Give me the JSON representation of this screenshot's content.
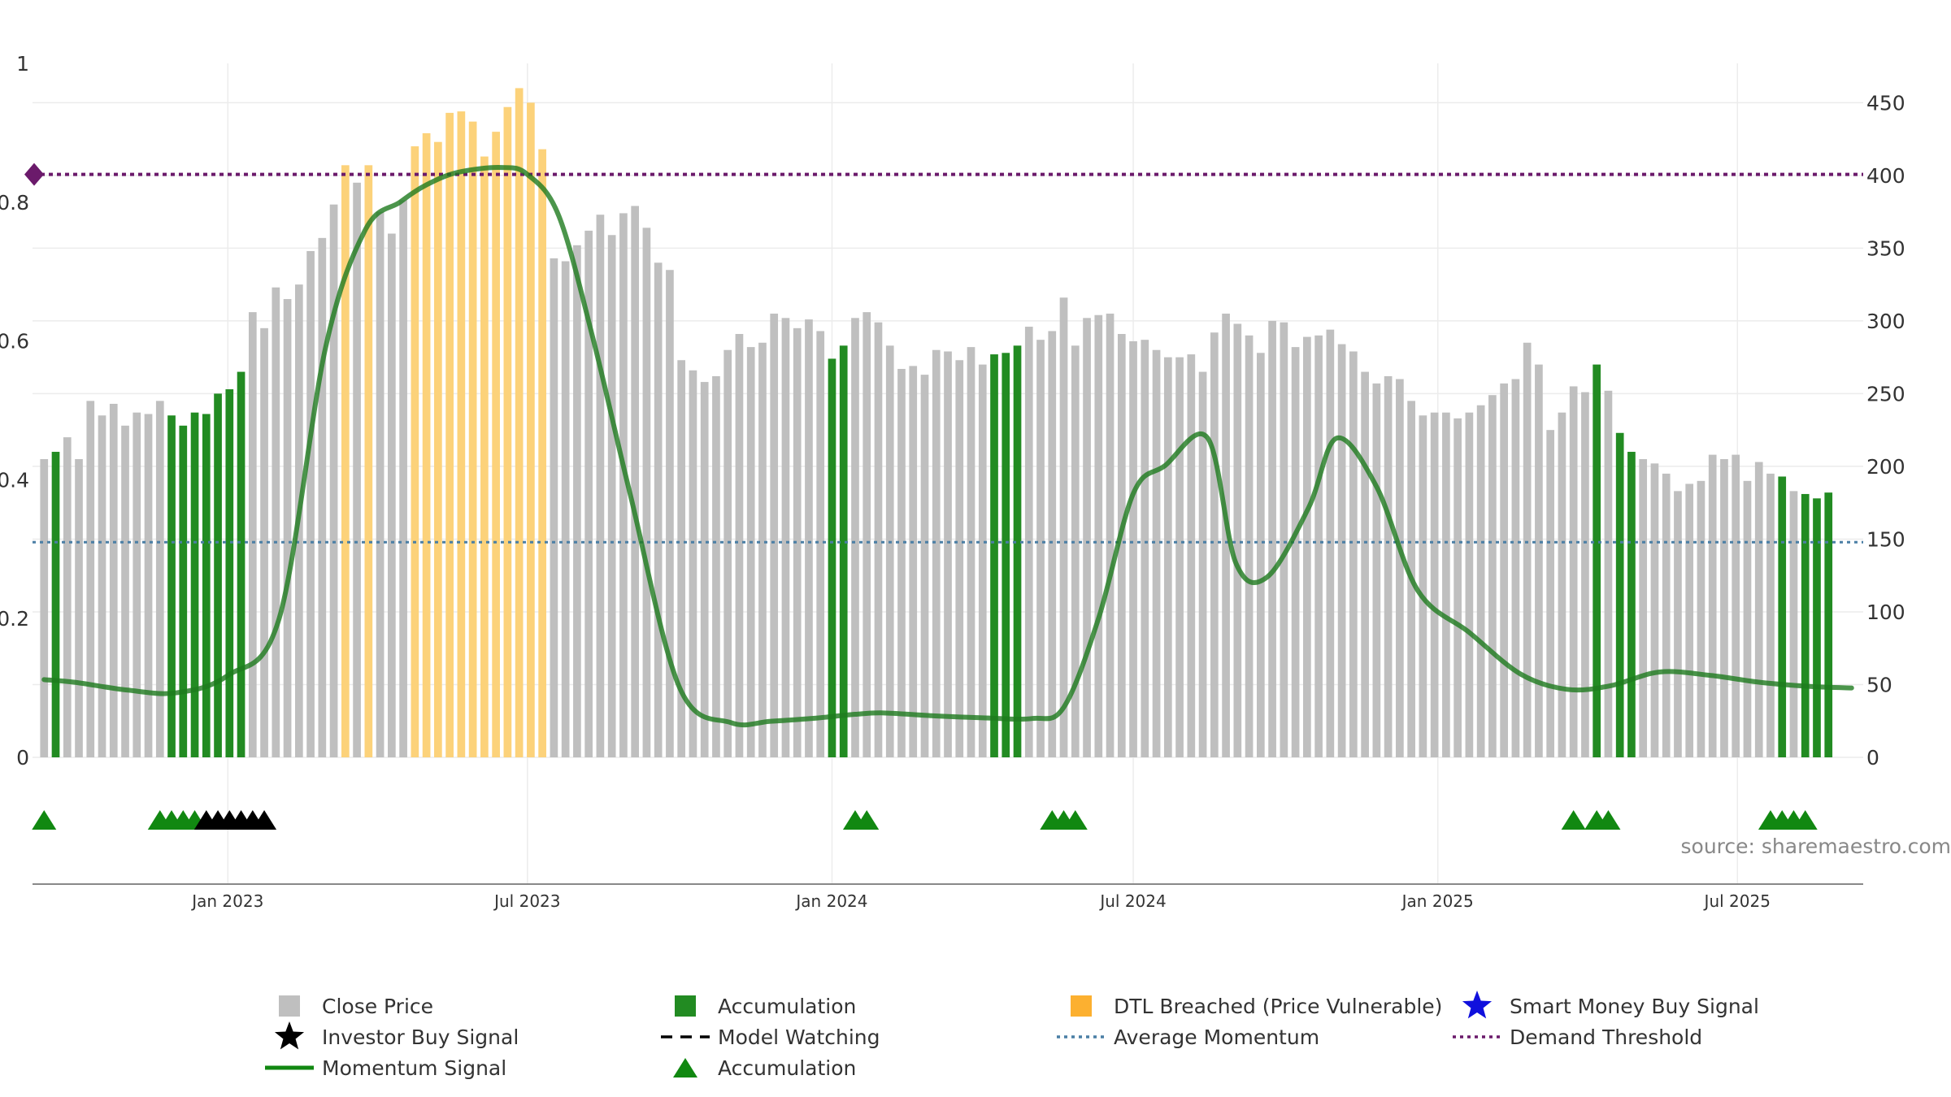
{
  "chart_data": {
    "type": "bar",
    "watermark": "source: sharemaestro.com",
    "colors": {
      "close_price": "#bfbfbf",
      "accumulation": "#228b22",
      "dtl_breached": "#fcd27a",
      "momentum": "#1e7b1e",
      "average_momentum": "#4a7fa5",
      "demand_threshold": "#6b1a6b",
      "investor_signal": "#000000",
      "smart_money": "#1010dd",
      "accumulation_marker": "#118811"
    },
    "axes": {
      "left": {
        "ylim": [
          0,
          1
        ],
        "ticks": [
          0,
          0.2,
          0.4,
          0.6,
          0.8,
          1
        ],
        "tick_labels": [
          "0",
          "0.2",
          "0.4",
          "0.6",
          "0.8",
          "1"
        ]
      },
      "right": {
        "ylim": [
          0,
          477
        ],
        "ticks": [
          0,
          50,
          100,
          150,
          200,
          250,
          300,
          350,
          400,
          450
        ],
        "tick_labels": [
          "0",
          "50",
          "100",
          "150",
          "200",
          "250",
          "300",
          "350",
          "400",
          "450"
        ]
      },
      "x": {
        "range": [
          "2022-09-05",
          "2025-09-15"
        ],
        "ticks": [
          "2023-01-01",
          "2023-07-01",
          "2024-01-01",
          "2024-07-01",
          "2025-01-01",
          "2025-07-01"
        ],
        "tick_labels": [
          "Jan 2023",
          "Jul 2023",
          "Jan 2024",
          "Jul 2024",
          "Jan 2025",
          "Jul 2025"
        ]
      }
    },
    "grid": true,
    "bar_start": "2022-09-12",
    "bar_interval_days": 7,
    "close_prices": [
      205,
      210,
      220,
      205,
      245,
      235,
      243,
      228,
      237,
      236,
      245,
      235,
      228,
      237,
      236,
      250,
      253,
      265,
      306,
      295,
      323,
      315,
      325,
      348,
      357,
      380,
      407,
      395,
      407,
      375,
      360,
      383,
      420,
      429,
      423,
      443,
      444,
      437,
      413,
      430,
      447,
      460,
      450,
      418,
      343,
      341,
      352,
      362,
      373,
      359,
      374,
      379,
      364,
      340,
      335,
      273,
      266,
      258,
      262,
      280,
      291,
      282,
      285,
      305,
      302,
      295,
      301,
      293,
      274,
      283,
      302,
      306,
      299,
      283,
      267,
      269,
      263,
      280,
      279,
      273,
      282,
      270,
      277,
      278,
      283,
      296,
      287,
      293,
      316,
      283,
      302,
      304,
      305,
      291,
      286,
      287,
      280,
      275,
      275,
      277,
      265,
      292,
      305,
      298,
      290,
      278,
      300,
      299,
      282,
      289,
      290,
      294,
      284,
      279,
      265,
      257,
      262,
      260,
      245,
      235,
      237,
      237,
      233,
      237,
      242,
      249,
      257,
      260,
      285,
      270,
      225,
      237,
      255,
      251,
      270,
      252,
      223,
      210,
      205,
      202,
      195,
      183,
      188,
      190,
      208,
      205,
      208,
      190,
      203,
      195,
      193,
      183,
      181,
      178,
      182
    ],
    "bar_types": [
      "c",
      "a",
      "c",
      "c",
      "c",
      "c",
      "c",
      "c",
      "c",
      "c",
      "c",
      "a",
      "a",
      "a",
      "a",
      "a",
      "a",
      "a",
      "c",
      "c",
      "c",
      "c",
      "c",
      "c",
      "c",
      "c",
      "b",
      "c",
      "b",
      "c",
      "c",
      "c",
      "b",
      "b",
      "b",
      "b",
      "b",
      "b",
      "b",
      "b",
      "b",
      "b",
      "b",
      "b",
      "c",
      "c",
      "c",
      "c",
      "c",
      "c",
      "c",
      "c",
      "c",
      "c",
      "c",
      "c",
      "c",
      "c",
      "c",
      "c",
      "c",
      "c",
      "c",
      "c",
      "c",
      "c",
      "c",
      "c",
      "a",
      "a",
      "c",
      "c",
      "c",
      "c",
      "c",
      "c",
      "c",
      "c",
      "c",
      "c",
      "c",
      "c",
      "a",
      "a",
      "a",
      "c",
      "c",
      "c",
      "c",
      "c",
      "c",
      "c",
      "c",
      "c",
      "c",
      "c",
      "c",
      "c",
      "c",
      "c",
      "c",
      "c",
      "c",
      "c",
      "c",
      "c",
      "c",
      "c",
      "c",
      "c",
      "c",
      "c",
      "c",
      "c",
      "c",
      "c",
      "c",
      "c",
      "c",
      "c",
      "c",
      "c",
      "c",
      "c",
      "c",
      "c",
      "c",
      "c",
      "c",
      "c",
      "c",
      "c",
      "c",
      "c",
      "a",
      "c",
      "a",
      "a",
      "c",
      "c",
      "c",
      "c",
      "c",
      "c",
      "c",
      "c",
      "c",
      "c",
      "c",
      "c",
      "a",
      "c",
      "a",
      "a",
      "a",
      "c"
    ],
    "momentum_signal": {
      "dates": [
        "2022-09-12",
        "2022-10-01",
        "2022-11-01",
        "2022-12-01",
        "2023-01-01",
        "2023-02-01",
        "2023-03-01",
        "2023-03-25",
        "2023-04-15",
        "2023-05-01",
        "2023-05-20",
        "2023-06-15",
        "2023-07-01",
        "2023-07-20",
        "2023-08-10",
        "2023-09-01",
        "2023-10-01",
        "2023-11-01",
        "2023-11-25",
        "2023-12-20",
        "2024-01-15",
        "2024-02-01",
        "2024-03-01",
        "2024-04-01",
        "2024-05-01",
        "2024-05-20",
        "2024-06-10",
        "2024-07-01",
        "2024-07-20",
        "2024-08-15",
        "2024-09-01",
        "2024-09-20",
        "2024-10-15",
        "2024-11-01",
        "2024-11-25",
        "2024-12-20",
        "2025-01-20",
        "2025-02-20",
        "2025-03-20",
        "2025-04-15",
        "2025-05-15",
        "2025-06-15",
        "2025-07-15",
        "2025-08-15",
        "2025-09-08"
      ],
      "values": [
        0.112,
        0.108,
        0.097,
        0.093,
        0.118,
        0.2,
        0.59,
        0.76,
        0.8,
        0.825,
        0.843,
        0.85,
        0.84,
        0.78,
        0.6,
        0.38,
        0.1,
        0.05,
        0.052,
        0.056,
        0.062,
        0.064,
        0.06,
        0.057,
        0.056,
        0.072,
        0.2,
        0.38,
        0.42,
        0.46,
        0.28,
        0.26,
        0.36,
        0.46,
        0.39,
        0.24,
        0.18,
        0.12,
        0.098,
        0.103,
        0.123,
        0.118,
        0.108,
        0.102,
        0.1
      ]
    },
    "average_momentum": 0.31,
    "demand_threshold": 0.84,
    "accumulation_markers": [
      "2022-09-12",
      "2022-11-21",
      "2022-11-28",
      "2022-12-05",
      "2022-12-12",
      "2024-01-15",
      "2024-01-22",
      "2024-05-13",
      "2024-05-20",
      "2024-05-27",
      "2025-03-24",
      "2025-04-07",
      "2025-04-14",
      "2025-07-21",
      "2025-07-28",
      "2025-08-04",
      "2025-08-11"
    ],
    "investor_markers": [
      "2022-12-19",
      "2022-12-26",
      "2023-01-02",
      "2023-01-09",
      "2023-01-16",
      "2023-01-23"
    ],
    "legend": [
      {
        "label": "Close Price",
        "symbol": "square",
        "color": "#bfbfbf"
      },
      {
        "label": "Accumulation",
        "symbol": "square",
        "color": "#228b22"
      },
      {
        "label": "DTL Breached (Price Vulnerable)",
        "symbol": "square",
        "color": "#fcb030"
      },
      {
        "label": "Smart Money Buy Signal",
        "symbol": "star",
        "color": "#1010dd"
      },
      {
        "label": "Investor Buy Signal",
        "symbol": "star",
        "color": "#000000"
      },
      {
        "label": "Model Watching",
        "symbol": "dash",
        "color": "#000000"
      },
      {
        "label": "Average Momentum",
        "symbol": "dot",
        "color": "#4a7fa5"
      },
      {
        "label": "Demand Threshold",
        "symbol": "dot",
        "color": "#6b1a6b"
      },
      {
        "label": "Momentum Signal",
        "symbol": "line",
        "color": "#118811"
      },
      {
        "label": "Accumulation",
        "symbol": "triangle",
        "color": "#118811"
      }
    ]
  }
}
